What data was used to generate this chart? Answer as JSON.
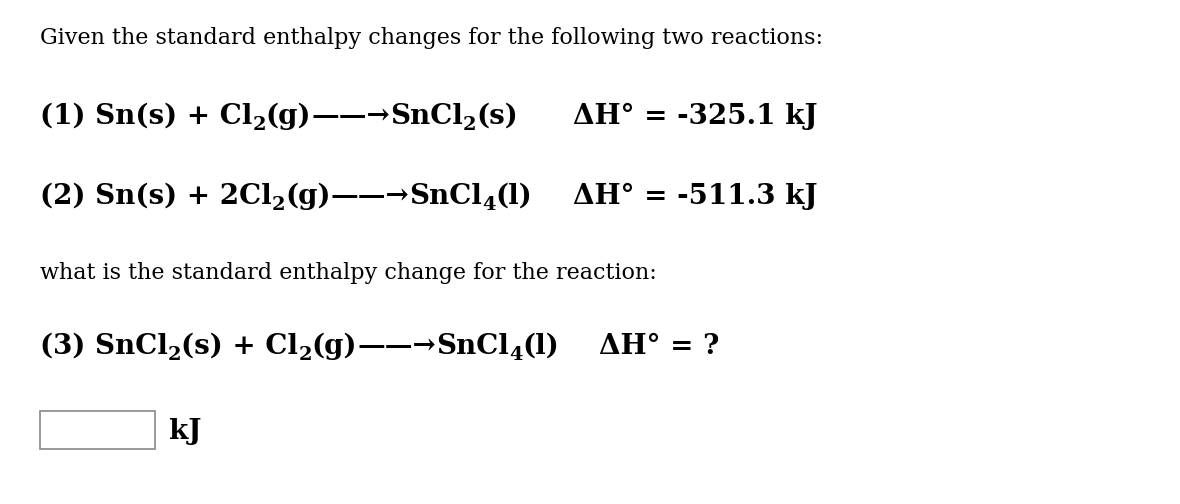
{
  "bg_color": "#ffffff",
  "text_color": "#000000",
  "title_text": "Given the standard enthalpy changes for the following two reactions:",
  "reaction1_dH": "ΔH° = -325.1 kJ",
  "reaction2_dH": "ΔH° = -511.3 kJ",
  "middle_text": "what is the standard enthalpy change for the reaction:",
  "reaction3_dH": "ΔH° = ?",
  "box_label": "kJ",
  "arrow": "——→",
  "font_size_title": 16,
  "font_size_reaction": 20,
  "font_size_middle": 16,
  "font_size_box_label": 20,
  "font_size_sub": 14
}
